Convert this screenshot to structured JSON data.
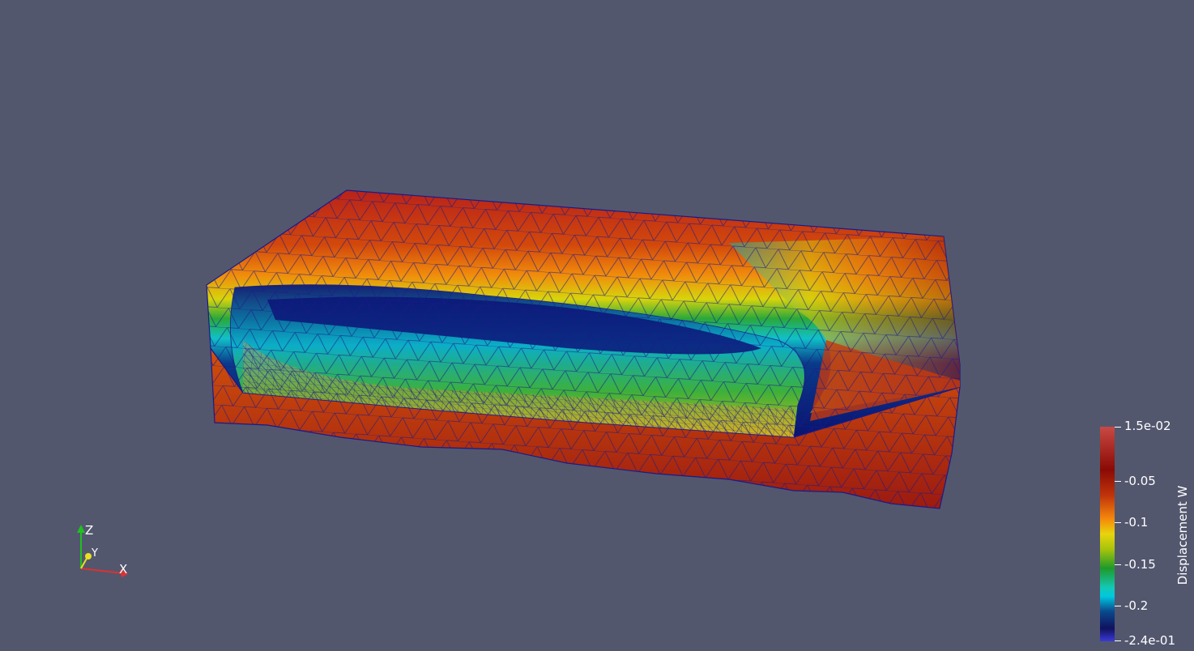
{
  "view": {
    "background": "#52576e",
    "mesh_edge_color": "#1a1a8a"
  },
  "axes": {
    "x_label": "X",
    "y_label": "Y",
    "z_label": "Z",
    "x_color": "#e03030",
    "y_color": "#e8e020",
    "z_color": "#20c020"
  },
  "colorbar": {
    "title": "Displacement W",
    "max_label": "1.5e-02",
    "min_label": "-2.4e-01",
    "tick_labels": [
      "-0.05",
      "-0.1",
      "-0.15",
      "-0.2"
    ],
    "colormap_stops": [
      "#c94a44",
      "#8a0a05",
      "#f5890c",
      "#e8d40c",
      "#1e9a2a",
      "#00c8e0",
      "#0a4a8e",
      "#3a3ad8"
    ]
  }
}
